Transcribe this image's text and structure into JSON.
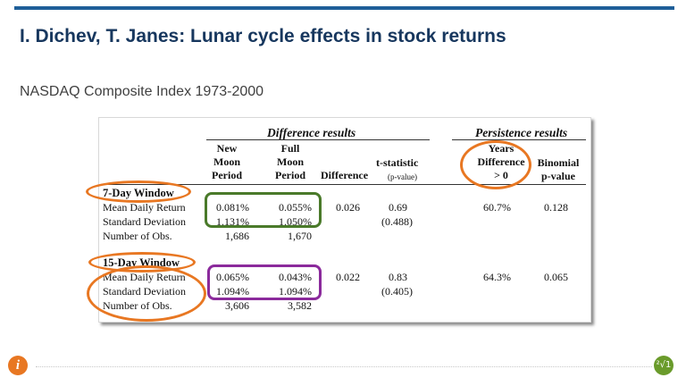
{
  "slide": {
    "title": "I. Dichev, T. Janes: Lunar cycle effects in stock returns",
    "subtitle": "NASDAQ Composite Index 1973-2000",
    "accent_color": "#1f5f99",
    "title_color": "#17375e"
  },
  "table": {
    "section_difference": "Difference results",
    "section_persistence": "Persistence results",
    "columns": {
      "new_moon": [
        "New",
        "Moon",
        "Period"
      ],
      "full_moon": [
        "Full",
        "Moon",
        "Period"
      ],
      "difference": "Difference",
      "tstat": "t-statistic",
      "tstat_sub": "(p-value)",
      "years": [
        "Years",
        "Difference",
        "> 0"
      ],
      "binomial": [
        "Binomial",
        "p-value"
      ]
    },
    "windows": [
      {
        "name": "7-Day Window",
        "labels": [
          "Mean Daily Return",
          "Standard Deviation",
          "Number of Obs."
        ],
        "new_moon": [
          "0.081%",
          "1.131%",
          "1,686"
        ],
        "full_moon": [
          "0.055%",
          "1.050%",
          "1,670"
        ],
        "difference": "0.026",
        "tstat": "0.69",
        "pvalue": "(0.488)",
        "years": "60.7%",
        "binomial": "0.128"
      },
      {
        "name": "15-Day Window",
        "labels": [
          "Mean Daily Return",
          "Standard Deviation",
          "Number of Obs."
        ],
        "new_moon": [
          "0.065%",
          "1.094%",
          "3,606"
        ],
        "full_moon": [
          "0.043%",
          "1.094%",
          "3,582"
        ],
        "difference": "0.022",
        "tstat": "0.83",
        "pvalue": "(0.405)",
        "years": "64.3%",
        "binomial": "0.065"
      }
    ]
  },
  "annotations": {
    "oval_color": "#e87722",
    "box_colors": [
      "#4a7a2a",
      "#8b2a9c"
    ]
  },
  "footer": {
    "logo_icon": "info-i-icon",
    "logo_text": "i",
    "badge_icon": "root-badge-icon",
    "badge_text": "²√1"
  }
}
